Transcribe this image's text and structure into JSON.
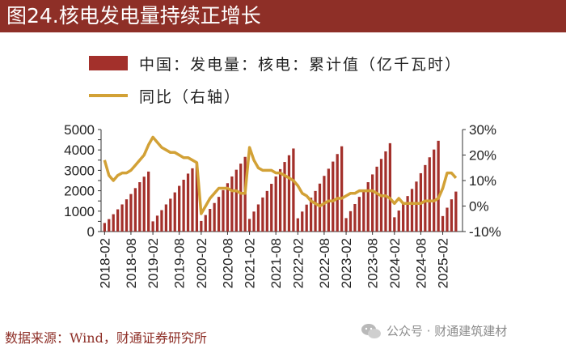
{
  "title": "图24.核电发电量持续正增长",
  "legend": {
    "bars_label": "中国：发电量：核电：累计值（亿千瓦时）",
    "line_label": "同比（右轴）"
  },
  "source": "数据来源：Wind，财通证券研究所",
  "watermark": "公众号 · 财通建筑建材",
  "colors": {
    "bars": "#a3302b",
    "line": "#d2a136",
    "title_bg": "#8e2f27"
  },
  "chart_data": {
    "type": "bar",
    "title": "",
    "xlabel": "",
    "ylabel": "",
    "x_tick_labels": [
      "2018-02",
      "2018-08",
      "2019-02",
      "2019-08",
      "2020-02",
      "2020-08",
      "2021-02",
      "2021-08",
      "2022-02",
      "2022-08",
      "2023-02",
      "2023-08",
      "2024-02",
      "2024-08",
      "2025-02"
    ],
    "y_left_ticks": [
      "0",
      "500",
      "1000",
      "1500",
      "2000",
      "2500",
      "3000",
      "3500",
      "4000",
      "4500",
      "5000"
    ],
    "y_right_ticks": [
      "-10%",
      "0%",
      "10%",
      "20%",
      "30%"
    ],
    "ylim_left": [
      0,
      5000
    ],
    "ylim_right": [
      -10,
      30
    ],
    "grid": false,
    "legend_position": "top-left",
    "series": [
      {
        "name": "中国：发电量：核电：累计值（亿千瓦时）",
        "axis": "left",
        "kind": "bar",
        "groups": [
          {
            "year": "2018",
            "start_month": 2,
            "values": [
              420,
              610,
              850,
              1090,
              1330,
              1580,
              1840,
              2130,
              2420,
              2690,
              2940
            ]
          },
          {
            "year": "2019",
            "start_month": 2,
            "values": [
              500,
              780,
              1050,
              1330,
              1610,
              1920,
              2240,
              2540,
              2840,
              3100,
              3350
            ]
          },
          {
            "year": "2020",
            "start_month": 2,
            "values": [
              520,
              810,
              1110,
              1400,
              1700,
              2030,
              2370,
              2700,
              3030,
              3330,
              3660
            ]
          },
          {
            "year": "2021",
            "start_month": 2,
            "values": [
              620,
              980,
              1330,
              1670,
              1990,
              2340,
              2700,
              3060,
              3410,
              3740,
              4070
            ]
          },
          {
            "year": "2022",
            "start_month": 2,
            "values": [
              650,
              980,
              1320,
              1660,
              1990,
              2350,
              2730,
              3080,
              3430,
              3800,
              4180
            ]
          },
          {
            "year": "2023",
            "start_month": 2,
            "values": [
              660,
              1000,
              1350,
              1700,
              2040,
              2420,
              2800,
              3180,
              3560,
              3930,
              4330
            ]
          },
          {
            "year": "2024",
            "start_month": 2,
            "values": [
              700,
              1030,
              1390,
              1740,
              2090,
              2450,
              2860,
              3260,
              3640,
              4020,
              4450
            ]
          },
          {
            "year": "2025",
            "start_month": 2,
            "values": [
              760,
              1170,
              1580,
              1960
            ]
          }
        ]
      },
      {
        "name": "同比（右轴）",
        "axis": "right",
        "kind": "line",
        "values": [
          18,
          12,
          10,
          12,
          13,
          13,
          14,
          16,
          18,
          20,
          24,
          27,
          25,
          23,
          22,
          21,
          21,
          20,
          19,
          19,
          18,
          17,
          -3,
          0,
          3,
          5,
          7,
          7,
          7,
          6,
          6,
          5,
          5,
          23,
          18,
          15,
          14,
          14,
          14,
          13,
          13,
          12,
          11,
          10,
          8,
          5,
          4,
          2,
          1,
          0,
          1,
          2,
          2,
          3,
          3,
          4,
          5,
          5,
          6,
          6,
          6,
          6,
          5,
          4,
          4,
          3,
          1,
          3,
          1,
          1,
          1,
          1,
          1,
          2,
          2,
          2,
          3,
          7,
          13,
          13,
          11
        ]
      }
    ]
  }
}
